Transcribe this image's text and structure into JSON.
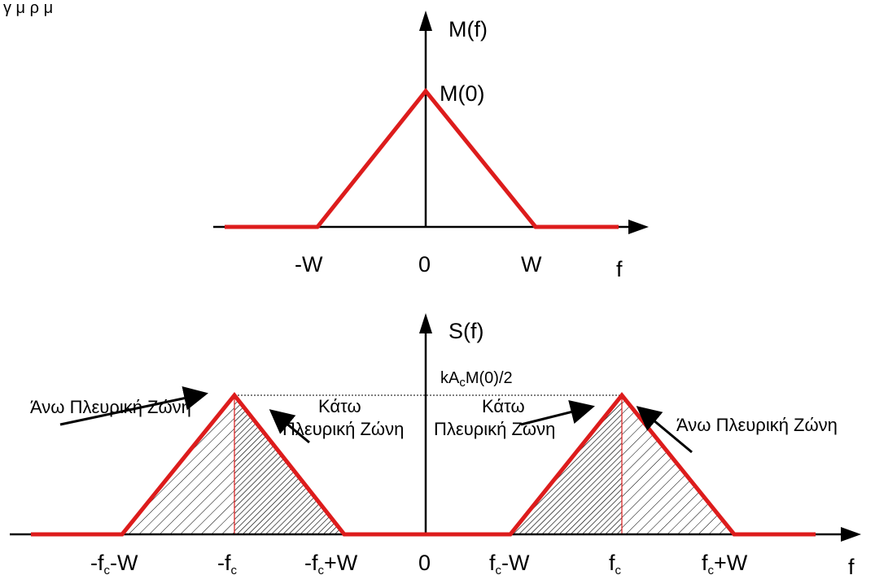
{
  "top_caption": "γ μ ρ μ",
  "top_plot": {
    "y_label": "M(f)",
    "peak_label": "M(0)",
    "x_axis_label": "f",
    "ticks": [
      {
        "id": "neg-w",
        "text": "-W"
      },
      {
        "id": "zero",
        "text": "0"
      },
      {
        "id": "pos-w",
        "text": "W"
      }
    ]
  },
  "bottom_plot": {
    "y_label": "S(f)",
    "peak_label": {
      "pre": "kA",
      "sub": "c",
      "post": "M(0)/2"
    },
    "x_axis_label": "f",
    "ticks": [
      {
        "id": "neg-fc-minus-w",
        "pre": "-f",
        "sub": "c",
        "post": "-W"
      },
      {
        "id": "neg-fc",
        "pre": "-f",
        "sub": "c",
        "post": ""
      },
      {
        "id": "neg-fc-plus-w",
        "pre": "-f",
        "sub": "c",
        "post": "+W"
      },
      {
        "id": "zero",
        "pre": "0",
        "sub": "",
        "post": ""
      },
      {
        "id": "fc-minus-w",
        "pre": "f",
        "sub": "c",
        "post": "-W"
      },
      {
        "id": "fc",
        "pre": "f",
        "sub": "c",
        "post": ""
      },
      {
        "id": "fc-plus-w",
        "pre": "f",
        "sub": "c",
        "post": "+W"
      }
    ],
    "annotations": {
      "left_usb": "Άνω Πλευρική Ζώνη",
      "left_lsb_line1": "Κάτω",
      "left_lsb_line2": "Πλευρική Ζώνη",
      "right_lsb_line1": "Κάτω",
      "right_lsb_line2": "Πλευρική Ζώνη",
      "right_usb": "Άνω Πλευρική Ζώνη"
    }
  },
  "colors": {
    "spectrum": "#dd1c1c",
    "axis": "#000000",
    "hatch": "#000000"
  }
}
